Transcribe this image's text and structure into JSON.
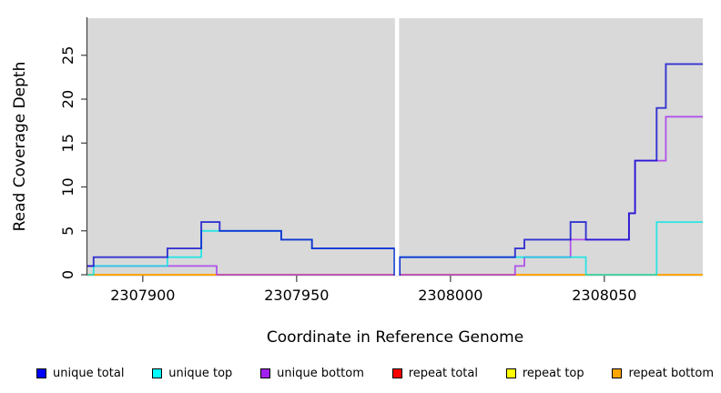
{
  "figure": {
    "background": "#ffffff",
    "panel_background": "#d9d9d9"
  },
  "axes": {
    "x": {
      "label": "Coordinate in Reference Genome",
      "ticks": [
        2307900,
        2307950,
        2308000,
        2308050
      ],
      "min": 2307882,
      "max": 2308082
    },
    "y": {
      "label": "Read Coverage Depth",
      "ticks": [
        0,
        5,
        10,
        15,
        20,
        25
      ],
      "min": 0,
      "max": 29
    }
  },
  "chart_data": {
    "type": "line",
    "subtype": "step-coverage",
    "title": "",
    "xlabel": "Coordinate in Reference Genome",
    "ylabel": "Read Coverage Depth",
    "xlim": [
      2307882,
      2308082
    ],
    "ylim": [
      0,
      29
    ],
    "grid": "off",
    "legend_position": "bottom",
    "gap_region": {
      "start": 2307981.95,
      "end": 2307983.3,
      "color": "#ffffff"
    },
    "series": [
      {
        "name": "repeat top",
        "legend_color": "#ffff00",
        "stroke": "#f0e000",
        "opacity": 1,
        "width": 1.4,
        "points": [
          [
            2307882,
            0
          ]
        ]
      },
      {
        "name": "repeat total",
        "legend_color": "#ff0000",
        "stroke": "#e00000",
        "opacity": 1,
        "width": 1.4,
        "points": [
          [
            2307882,
            0
          ]
        ]
      },
      {
        "name": "repeat bottom",
        "legend_color": "#ffa500",
        "stroke": "#ffa500",
        "opacity": 1,
        "width": 2,
        "points": [
          [
            2307882,
            0
          ]
        ]
      },
      {
        "name": "unique bottom",
        "legend_color": "#a020f0",
        "stroke": "#a83beb",
        "opacity": 0.85,
        "width": 1.8,
        "points": [
          [
            2307882,
            1
          ],
          [
            2307924,
            0
          ],
          [
            2308021,
            1
          ],
          [
            2308024,
            2
          ],
          [
            2308039,
            4
          ],
          [
            2308058,
            7
          ],
          [
            2308060,
            13
          ],
          [
            2308070,
            18
          ]
        ]
      },
      {
        "name": "unique top",
        "legend_color": "#00ffff",
        "stroke": "#00e6e6",
        "opacity": 0.8,
        "width": 1.8,
        "points": [
          [
            2307882,
            0
          ],
          [
            2307884,
            1
          ],
          [
            2307908,
            2
          ],
          [
            2307919,
            5
          ],
          [
            2307945,
            4
          ],
          [
            2307955,
            3
          ],
          [
            2307981.8,
            0
          ],
          [
            2307983.5,
            2
          ],
          [
            2308044,
            0
          ],
          [
            2308067,
            6
          ]
        ]
      },
      {
        "name": "unique total",
        "legend_color": "#0000ff",
        "stroke": "#0a0acf",
        "opacity": 0.8,
        "width": 1.9,
        "points": [
          [
            2307882,
            1
          ],
          [
            2307884,
            2
          ],
          [
            2307908,
            3
          ],
          [
            2307919,
            6
          ],
          [
            2307925,
            5
          ],
          [
            2307945,
            4
          ],
          [
            2307955,
            3
          ],
          [
            2307981.8,
            0
          ],
          [
            2307983.5,
            2
          ],
          [
            2308021,
            3
          ],
          [
            2308024,
            4
          ],
          [
            2308039,
            6
          ],
          [
            2308044,
            4
          ],
          [
            2308058,
            7
          ],
          [
            2308060,
            13
          ],
          [
            2308067,
            19
          ],
          [
            2308070,
            24
          ]
        ]
      }
    ]
  },
  "legend": {
    "items": [
      {
        "label": "unique total",
        "color": "#0000ff"
      },
      {
        "label": "unique top",
        "color": "#00ffff"
      },
      {
        "label": "unique bottom",
        "color": "#a020f0"
      },
      {
        "label": "repeat total",
        "color": "#ff0000"
      },
      {
        "label": "repeat top",
        "color": "#ffff00"
      },
      {
        "label": "repeat bottom",
        "color": "#ffa500"
      }
    ]
  }
}
